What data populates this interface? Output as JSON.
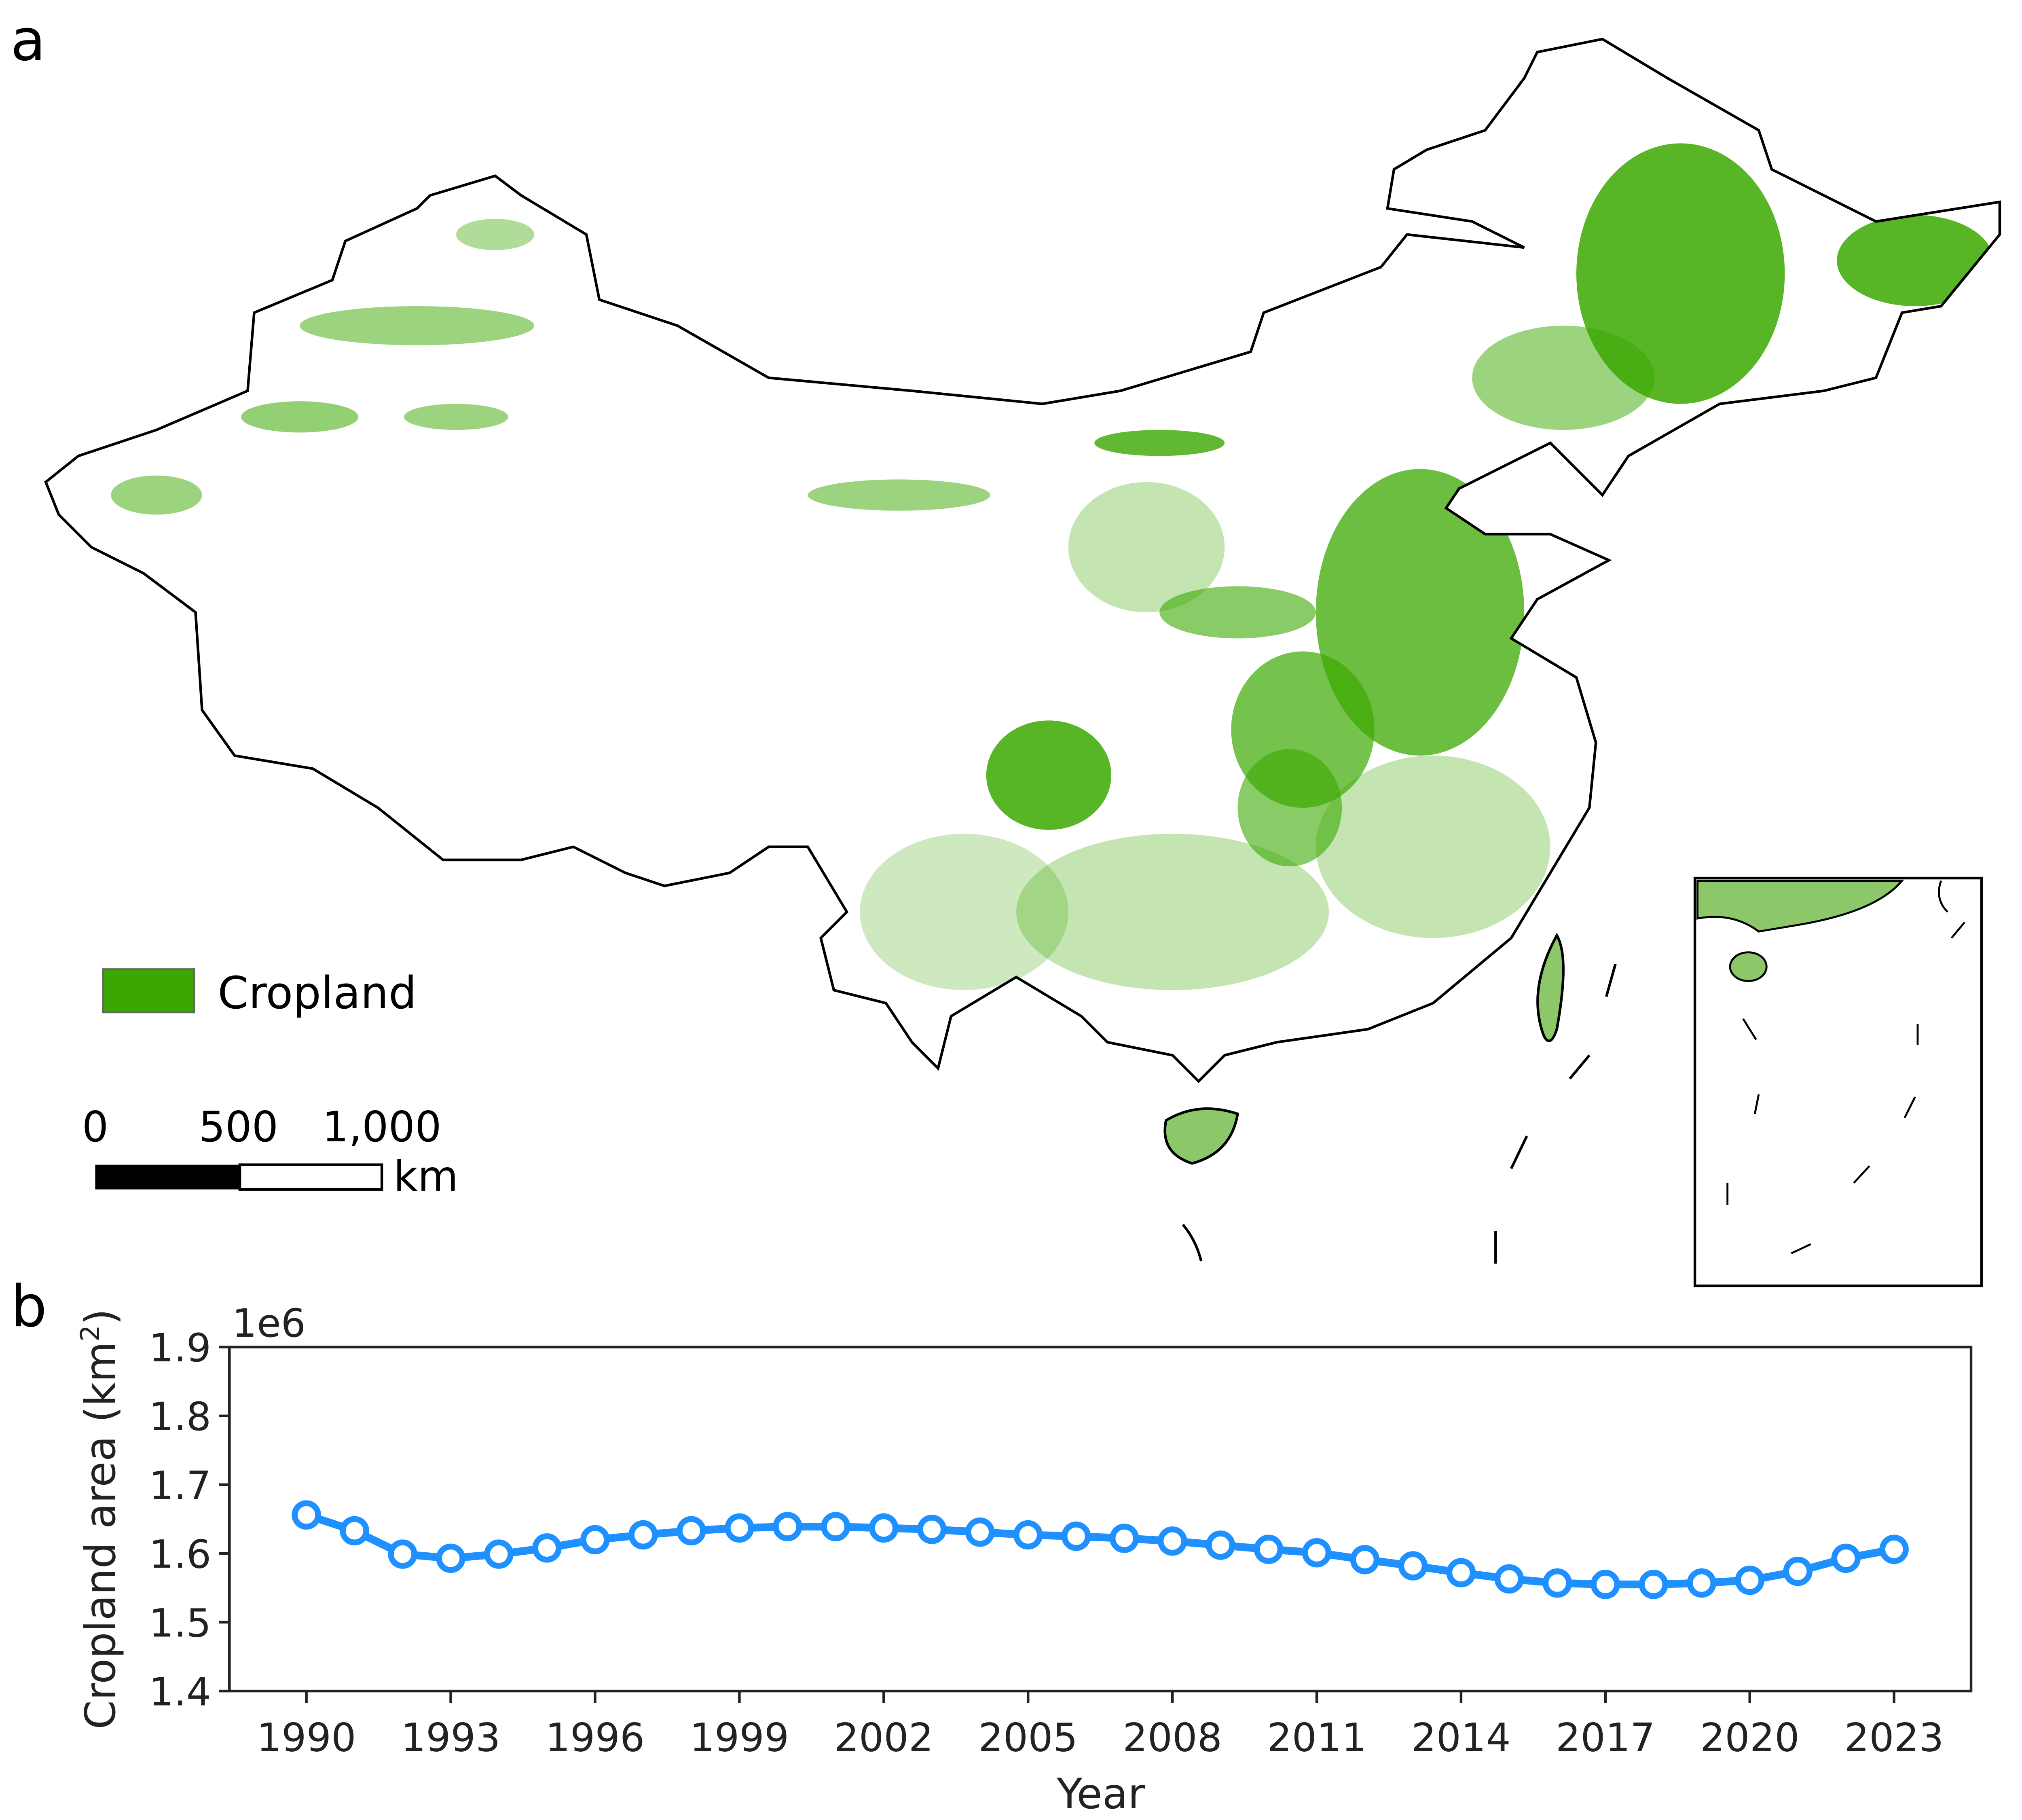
{
  "panel_a": {
    "label": "a",
    "legend": {
      "label": "Cropland",
      "color": "#3aa800"
    },
    "scale_bar": {
      "ticks": [
        "0",
        "500",
        "1,000"
      ],
      "unit": "km"
    }
  },
  "panel_b": {
    "label": "b"
  },
  "chart_data": {
    "type": "line",
    "xlabel": "Year",
    "ylabel": "Cropland area (km",
    "ylabel_sup": "2",
    "ylabel_close": ")",
    "y_multiplier": "1e6",
    "ylim": [
      1.4,
      1.9
    ],
    "yticks": [
      "1.4",
      "1.5",
      "1.6",
      "1.7",
      "1.8",
      "1.9"
    ],
    "xlim": [
      1988.4,
      2024.6
    ],
    "xticks": [
      "1990",
      "1993",
      "1996",
      "1999",
      "2002",
      "2005",
      "2008",
      "2011",
      "2014",
      "2017",
      "2020",
      "2023"
    ],
    "grid": false,
    "color": "#1e90ff",
    "marker": "open-circle",
    "x": [
      1990,
      1991,
      1992,
      1993,
      1994,
      1995,
      1996,
      1997,
      1998,
      1999,
      2000,
      2001,
      2002,
      2003,
      2004,
      2005,
      2006,
      2007,
      2008,
      2009,
      2010,
      2011,
      2012,
      2013,
      2014,
      2015,
      2016,
      2017,
      2018,
      2019,
      2020,
      2021,
      2022,
      2023
    ],
    "values": [
      1.656,
      1.633,
      1.599,
      1.593,
      1.599,
      1.608,
      1.62,
      1.627,
      1.633,
      1.637,
      1.639,
      1.639,
      1.637,
      1.635,
      1.631,
      1.627,
      1.625,
      1.622,
      1.618,
      1.612,
      1.606,
      1.601,
      1.591,
      1.582,
      1.572,
      1.563,
      1.557,
      1.555,
      1.555,
      1.557,
      1.561,
      1.574,
      1.593,
      1.606
    ]
  }
}
